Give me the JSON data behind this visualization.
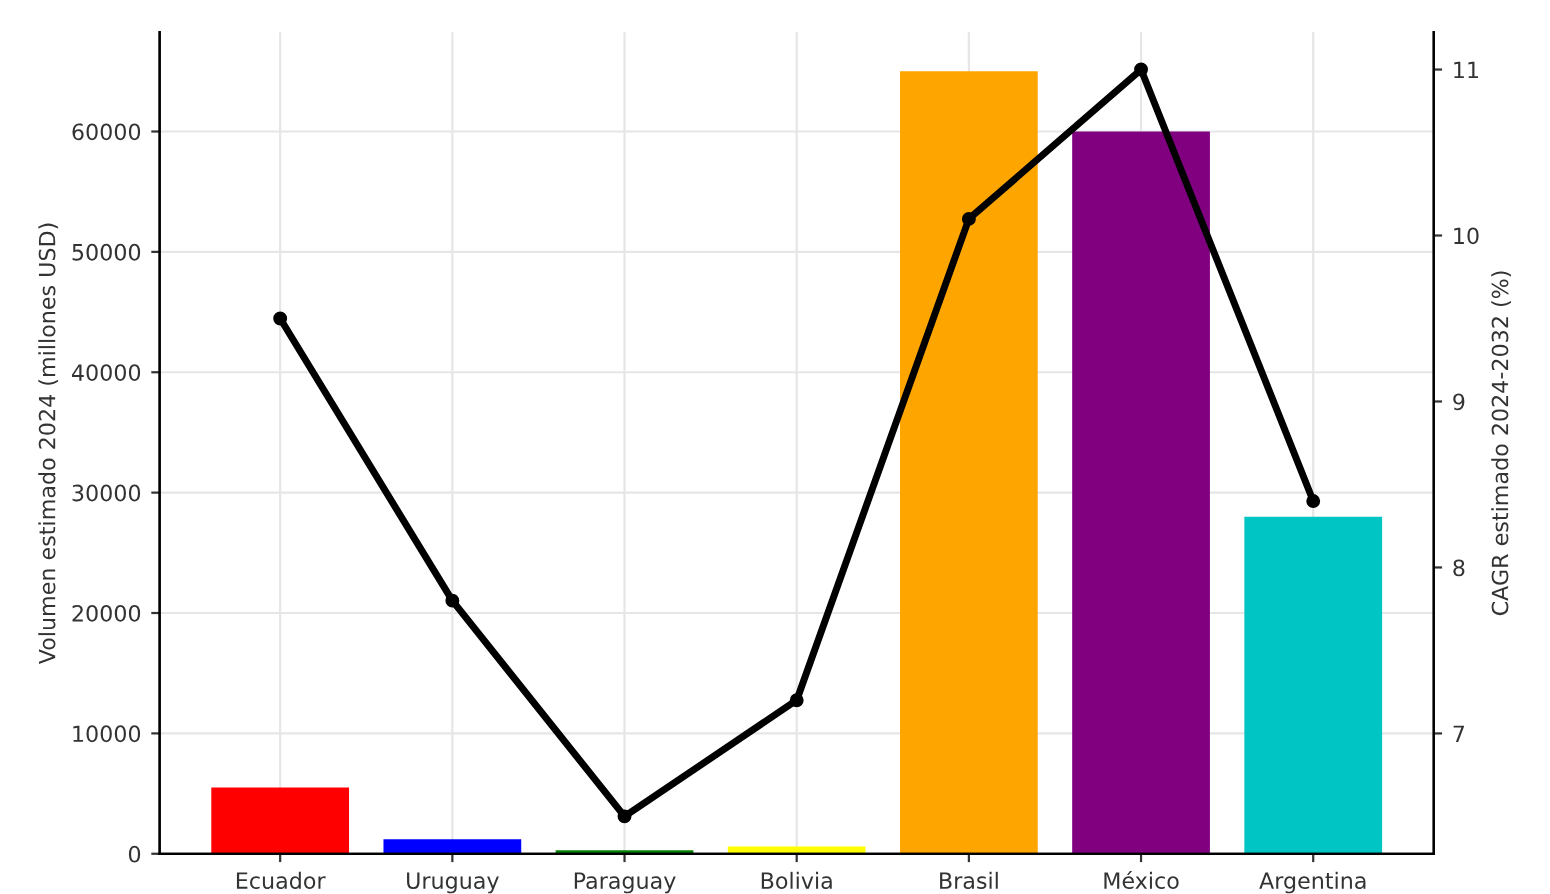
{
  "chart_data": {
    "type": "bar",
    "categories": [
      "Ecuador",
      "Uruguay",
      "Paraguay",
      "Bolivia",
      "Brasil",
      "México",
      "Argentina"
    ],
    "ylabel": "Volumen estimado 2024 (millones USD)",
    "y2label": "CAGR estimado 2024-2032 (%)",
    "series": [
      {
        "colors": [
          "#ff0000",
          "#0000ff",
          "#008000",
          "#ffff00",
          "#ffa500",
          "#800080",
          "#00c5c5"
        ],
        "values": [
          5500,
          1200,
          300,
          600,
          65000,
          60000,
          28000
        ]
      },
      {
        "type": "line",
        "axis": "y2",
        "color": "#000000",
        "values": [
          9.5,
          7.8,
          6.5,
          7.2,
          10.1,
          11,
          8.4
        ]
      }
    ],
    "ylim": [
      0,
      68250
    ],
    "yticks": [
      0,
      10000,
      20000,
      30000,
      40000,
      50000,
      60000
    ],
    "y2lim": [
      6.275,
      11.225
    ],
    "y2ticks": [
      7,
      8,
      9,
      10,
      11
    ],
    "grid": true,
    "marker": "circle",
    "line_style": "solid",
    "legend": false
  }
}
